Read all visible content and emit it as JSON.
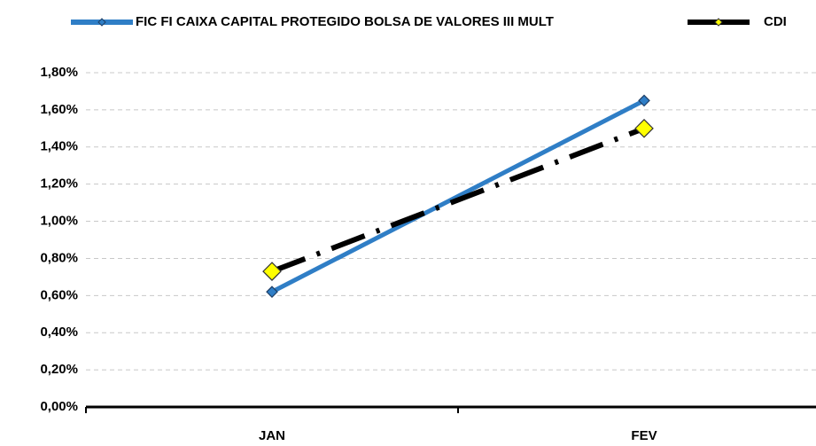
{
  "chart_data": {
    "type": "line",
    "categories": [
      "JAN",
      "FEV"
    ],
    "series": [
      {
        "name": "FIC FI CAIXA CAPITAL PROTEGIDO BOLSA DE VALORES III MULT",
        "color": "#2f7ec6",
        "values": [
          0.62,
          1.65
        ]
      },
      {
        "name": "CDI",
        "color": "#000000",
        "values": [
          0.73,
          1.5
        ]
      }
    ],
    "ylim": [
      0,
      1.8
    ],
    "yticks": [
      {
        "value": 0,
        "label": "0,00%"
      },
      {
        "value": 0.2,
        "label": "0,20%"
      },
      {
        "value": 0.4,
        "label": "0,40%"
      },
      {
        "value": 0.6,
        "label": "0,60%"
      },
      {
        "value": 0.8,
        "label": "0,80%"
      },
      {
        "value": 1.0,
        "label": "1,00%"
      },
      {
        "value": 1.2,
        "label": "1,20%"
      },
      {
        "value": 1.4,
        "label": "1,40%"
      },
      {
        "value": 1.6,
        "label": "1,60%"
      },
      {
        "value": 1.8,
        "label": "1,80%"
      }
    ],
    "grid": true
  }
}
